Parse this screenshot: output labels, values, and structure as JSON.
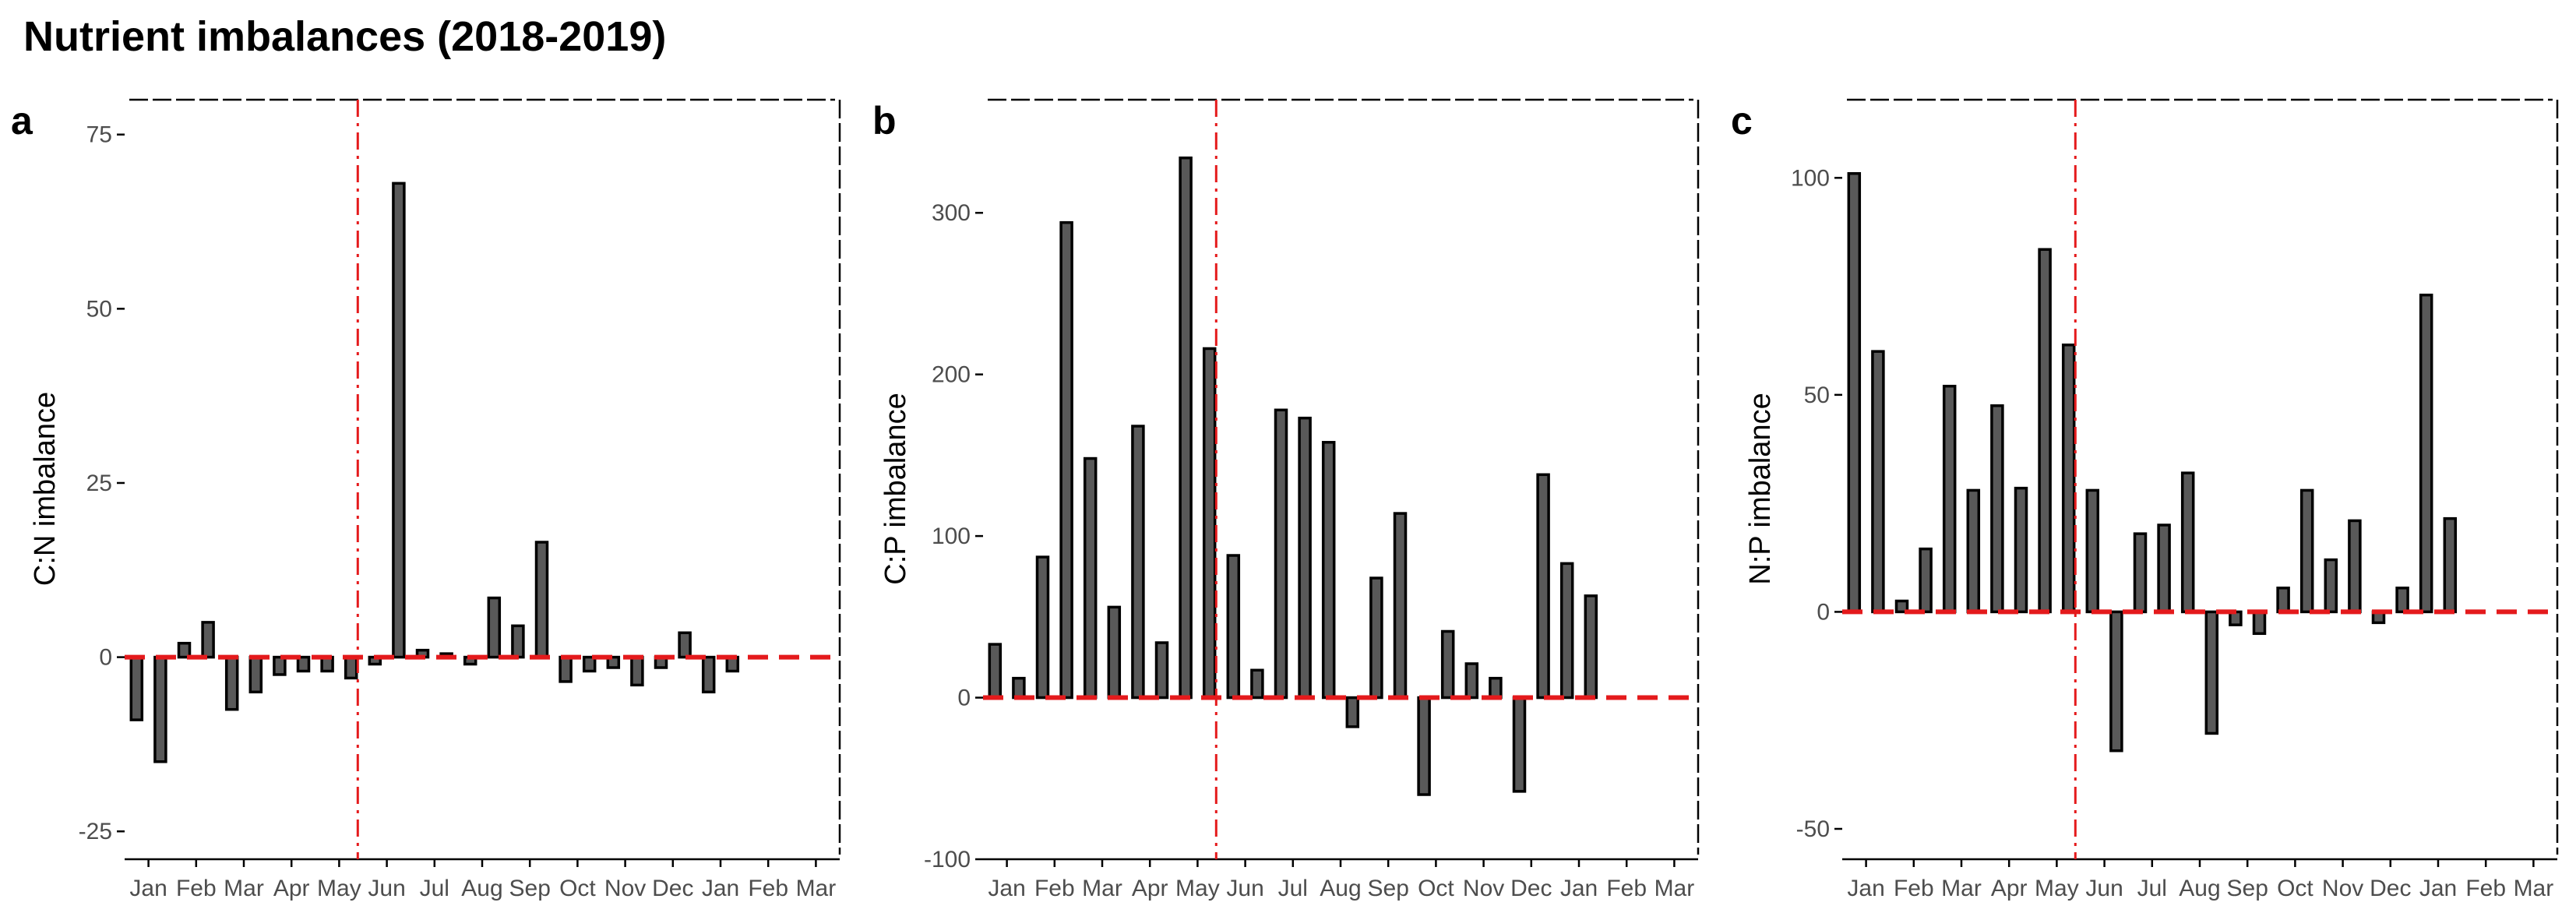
{
  "figure": {
    "title": "Nutrient imbalances (2018-2019)"
  },
  "colors": {
    "bar_fill": "#595959",
    "bar_stroke": "#000000",
    "reference": "#e41a1c",
    "axis": "#000000",
    "tick_text": "#4d4d4d"
  },
  "chart_data": [
    {
      "type": "bar",
      "panel_label": "a",
      "ylabel": "C:N imbalance",
      "xlabel": "",
      "x_tick_labels": [
        "Jan",
        "Feb",
        "Mar",
        "Apr",
        "May",
        "Jun",
        "Jul",
        "Aug",
        "Sep",
        "Oct",
        "Nov",
        "Dec",
        "Jan",
        "Feb",
        "Mar"
      ],
      "ylim": [
        -29,
        80
      ],
      "yticks": [
        -25,
        0,
        25,
        50,
        75
      ],
      "values": [
        -9,
        -15,
        2,
        5,
        -7.5,
        -5,
        -2.5,
        -2,
        -2,
        -3,
        -1,
        68,
        1,
        0.5,
        -1,
        8.5,
        4.5,
        16.5,
        -3.5,
        -2,
        -1.5,
        -4,
        -1.5,
        3.5,
        -5,
        -2
      ],
      "zero_reference_line": "dashed",
      "reference_vline": "between Jun and Jul",
      "grid": false
    },
    {
      "type": "bar",
      "panel_label": "b",
      "ylabel": "C:P imbalance",
      "xlabel": "",
      "x_tick_labels": [
        "Jan",
        "Feb",
        "Mar",
        "Apr",
        "May",
        "Jun",
        "Jul",
        "Aug",
        "Sep",
        "Oct",
        "Nov",
        "Dec",
        "Jan",
        "Feb",
        "Mar"
      ],
      "ylim": [
        -100,
        370
      ],
      "yticks": [
        -100,
        0,
        100,
        200,
        300
      ],
      "values": [
        33,
        12,
        87,
        294,
        148,
        56,
        168,
        34,
        334,
        216,
        88,
        17,
        178,
        173,
        158,
        -18,
        74,
        114,
        -60,
        41,
        21,
        12,
        -58,
        138,
        83,
        63
      ],
      "zero_reference_line": "dashed",
      "reference_vline": "between Jun and Jul",
      "grid": false
    },
    {
      "type": "bar",
      "panel_label": "c",
      "ylabel": "N:P imbalance",
      "xlabel": "",
      "x_tick_labels": [
        "Jan",
        "Feb",
        "Mar",
        "Apr",
        "May",
        "Jun",
        "Jul",
        "Aug",
        "Sep",
        "Oct",
        "Nov",
        "Dec",
        "Jan",
        "Feb",
        "Mar"
      ],
      "ylim": [
        -57,
        118
      ],
      "yticks": [
        -50,
        0,
        50,
        100
      ],
      "values": [
        101,
        60,
        2.5,
        14.5,
        52,
        28,
        47.5,
        28.5,
        83.5,
        61.5,
        28,
        -32,
        18,
        20,
        32,
        -28,
        -3,
        -5,
        5.5,
        28,
        12,
        21,
        -2.5,
        5.5,
        73,
        21.5
      ],
      "zero_reference_line": "dashed",
      "reference_vline": "between Jun and Jul",
      "grid": false
    }
  ]
}
